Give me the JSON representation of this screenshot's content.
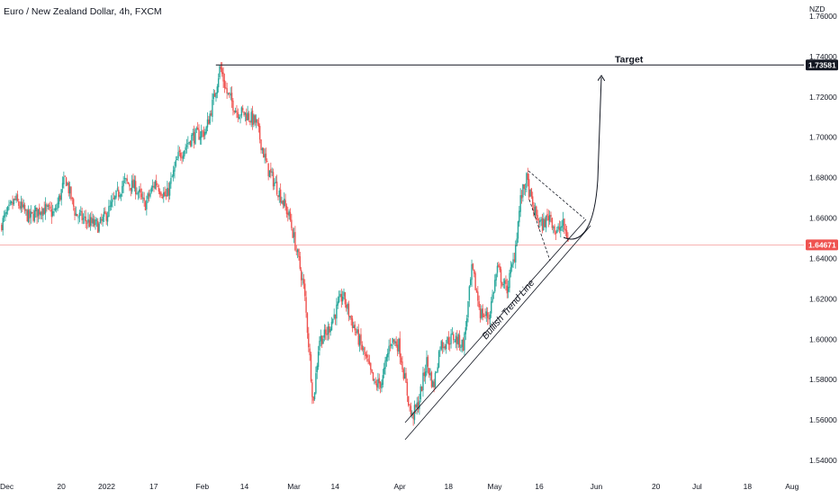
{
  "chart_data": {
    "type": "candlestick",
    "title": "Euro / New Zealand Dollar, 4h, FXCM",
    "currency": "NZD",
    "ylim": [
      1.532,
      1.768
    ],
    "y_ticks": [
      "1.76000",
      "1.74000",
      "1.72000",
      "1.70000",
      "1.68000",
      "1.66000",
      "1.64000",
      "1.62000",
      "1.60000",
      "1.58000",
      "1.56000",
      "1.54000"
    ],
    "y_tick_values": [
      1.76,
      1.74,
      1.72,
      1.7,
      1.68,
      1.66,
      1.64,
      1.62,
      1.6,
      1.58,
      1.56,
      1.54
    ],
    "x_ticks": [
      {
        "label": "Dec",
        "t": 0
      },
      {
        "label": "20",
        "t": 0.073
      },
      {
        "label": "2022",
        "t": 0.127
      },
      {
        "label": "17",
        "t": 0.183
      },
      {
        "label": "Feb",
        "t": 0.241
      },
      {
        "label": "14",
        "t": 0.291
      },
      {
        "label": "Mar",
        "t": 0.35
      },
      {
        "label": "14",
        "t": 0.399
      },
      {
        "label": "Apr",
        "t": 0.476
      },
      {
        "label": "18",
        "t": 0.534
      },
      {
        "label": "May",
        "t": 0.589
      },
      {
        "label": "16",
        "t": 0.642
      },
      {
        "label": "Jun",
        "t": 0.71
      },
      {
        "label": "20",
        "t": 0.781
      },
      {
        "label": "Jul",
        "t": 0.83
      },
      {
        "label": "18",
        "t": 0.89
      },
      {
        "label": "Aug",
        "t": 0.943
      }
    ],
    "price_path": [
      [
        0.0,
        1.656
      ],
      [
        0.018,
        1.669
      ],
      [
        0.035,
        1.66
      ],
      [
        0.05,
        1.665
      ],
      [
        0.065,
        1.662
      ],
      [
        0.078,
        1.68
      ],
      [
        0.09,
        1.662
      ],
      [
        0.105,
        1.658
      ],
      [
        0.118,
        1.656
      ],
      [
        0.13,
        1.664
      ],
      [
        0.148,
        1.678
      ],
      [
        0.162,
        1.675
      ],
      [
        0.172,
        1.666
      ],
      [
        0.185,
        1.678
      ],
      [
        0.198,
        1.67
      ],
      [
        0.212,
        1.69
      ],
      [
        0.228,
        1.7
      ],
      [
        0.245,
        1.703
      ],
      [
        0.255,
        1.72
      ],
      [
        0.262,
        1.735
      ],
      [
        0.27,
        1.722
      ],
      [
        0.282,
        1.713
      ],
      [
        0.295,
        1.711
      ],
      [
        0.305,
        1.707
      ],
      [
        0.318,
        1.685
      ],
      [
        0.332,
        1.673
      ],
      [
        0.345,
        1.66
      ],
      [
        0.355,
        1.64
      ],
      [
        0.362,
        1.625
      ],
      [
        0.368,
        1.595
      ],
      [
        0.373,
        1.568
      ],
      [
        0.38,
        1.6
      ],
      [
        0.388,
        1.602
      ],
      [
        0.398,
        1.612
      ],
      [
        0.408,
        1.622
      ],
      [
        0.416,
        1.612
      ],
      [
        0.426,
        1.601
      ],
      [
        0.436,
        1.59
      ],
      [
        0.446,
        1.577
      ],
      [
        0.455,
        1.579
      ],
      [
        0.465,
        1.6
      ],
      [
        0.475,
        1.597
      ],
      [
        0.482,
        1.58
      ],
      [
        0.49,
        1.561
      ],
      [
        0.498,
        1.568
      ],
      [
        0.508,
        1.589
      ],
      [
        0.516,
        1.576
      ],
      [
        0.524,
        1.597
      ],
      [
        0.532,
        1.599
      ],
      [
        0.54,
        1.601
      ],
      [
        0.552,
        1.597
      ],
      [
        0.562,
        1.635
      ],
      [
        0.572,
        1.613
      ],
      [
        0.582,
        1.611
      ],
      [
        0.592,
        1.635
      ],
      [
        0.603,
        1.624
      ],
      [
        0.612,
        1.64
      ],
      [
        0.62,
        1.67
      ],
      [
        0.627,
        1.679
      ],
      [
        0.635,
        1.664
      ],
      [
        0.645,
        1.656
      ],
      [
        0.655,
        1.662
      ],
      [
        0.662,
        1.652
      ],
      [
        0.67,
        1.657
      ],
      [
        0.677,
        1.649
      ]
    ],
    "current_price": "1.64671",
    "current_price_value": 1.64671,
    "annotations": {
      "target_label": "Target",
      "target_price": "1.73581",
      "target_value": 1.73581,
      "trendline_label": "Bullish Trend Line"
    },
    "colors": {
      "up": "#26a69a",
      "down": "#ef5350",
      "current_price": "#ef5350",
      "target_badge": "#131722",
      "annotation": "#131722",
      "trendline": "#131722"
    }
  }
}
